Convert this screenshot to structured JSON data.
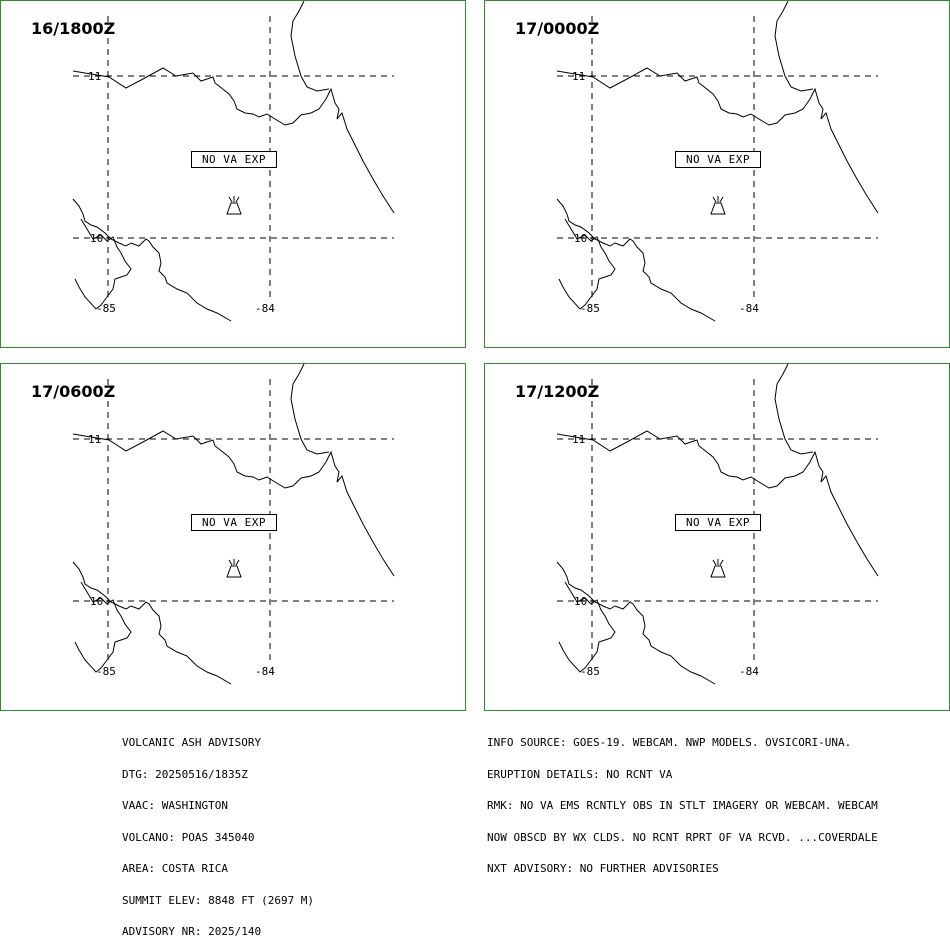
{
  "panels": [
    {
      "time": "16/1800Z",
      "box_text": "NO VA EXP"
    },
    {
      "time": "17/0000Z",
      "box_text": "NO VA EXP"
    },
    {
      "time": "17/0600Z",
      "box_text": "NO VA EXP"
    },
    {
      "time": "17/1200Z",
      "box_text": "NO VA EXP"
    }
  ],
  "grid_labels": {
    "lat_11": "11",
    "lat_10": "10",
    "lon_85": "-85",
    "lon_84": "-84"
  },
  "colors": {
    "panel_border": "#2e8b2e",
    "lines": "#000000"
  },
  "icons": {
    "volcano": "volcano-icon"
  },
  "advisory_left": [
    "VOLCANIC ASH ADVISORY",
    "DTG: 20250516/1835Z",
    "VAAC: WASHINGTON",
    "VOLCANO: POAS 345040",
    "AREA: COSTA RICA",
    "SUMMIT ELEV: 8848 FT (2697 M)",
    "ADVISORY NR: 2025/140"
  ],
  "advisory_right": [
    "INFO SOURCE: GOES-19. WEBCAM. NWP MODELS. OVSICORI-UNA.",
    "ERUPTION DETAILS: NO RCNT VA",
    "RMK: NO VA EMS RCNTLY OBS IN STLT IMAGERY OR WEBCAM. WEBCAM",
    "NOW OBSCD BY WX CLDS. NO RCNT RPRT OF VA RCVD. ...COVERDALE",
    "NXT ADVISORY: NO FURTHER ADVISORIES"
  ]
}
